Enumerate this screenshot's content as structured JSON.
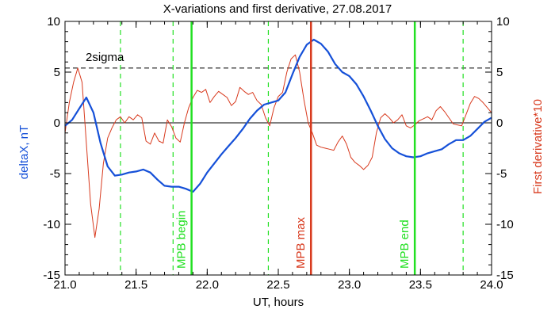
{
  "chart_data": {
    "type": "line",
    "title": "X-variations and first derivative, 27.08.2017",
    "xlabel": "UT, hours",
    "ylabel_left": "deltaX, nT",
    "ylabel_right": "First derivative*10",
    "xlim": [
      21.0,
      24.0
    ],
    "ylim": [
      -15,
      10
    ],
    "x_ticks": [
      21.0,
      21.5,
      22.0,
      22.5,
      23.0,
      23.5,
      24.0
    ],
    "x_tick_labels": [
      "21.0",
      "21.5",
      "22.0",
      "22.5",
      "23.0",
      "23.5",
      "24.0"
    ],
    "y_ticks": [
      -15,
      -10,
      -5,
      0,
      5,
      10
    ],
    "y_tick_labels": [
      "-15",
      "-10",
      "-5",
      "0",
      "5",
      "10"
    ],
    "colors": {
      "deltaX": "#1550d8",
      "derivative": "#d83a1e",
      "mpb_edges": "#22e022",
      "mpb_max": "#d83a1e",
      "zero_line": "#000000",
      "sigma_line": "#000000"
    },
    "sigma_line": {
      "label": "2sigma",
      "y": 5.4
    },
    "zero_line": {
      "y": 0
    },
    "dashed_markers": [
      21.39,
      21.76,
      22.43,
      23.8
    ],
    "vertical_markers": [
      {
        "x": 21.89,
        "label": "MPB begin",
        "color": "#22e022"
      },
      {
        "x": 22.73,
        "label": "MPB max",
        "color": "#d83a1e"
      },
      {
        "x": 23.46,
        "label": "MPB end",
        "color": "#22e022"
      }
    ],
    "series": [
      {
        "role": "deltaX",
        "color": "#1550d8",
        "x": [
          21.0,
          21.05,
          21.1,
          21.15,
          21.2,
          21.25,
          21.3,
          21.35,
          21.4,
          21.45,
          21.5,
          21.55,
          21.6,
          21.65,
          21.7,
          21.75,
          21.8,
          21.85,
          21.9,
          21.95,
          22.0,
          22.05,
          22.1,
          22.15,
          22.2,
          22.25,
          22.3,
          22.35,
          22.4,
          22.45,
          22.5,
          22.55,
          22.6,
          22.65,
          22.7,
          22.75,
          22.8,
          22.85,
          22.9,
          22.95,
          23.0,
          23.05,
          23.1,
          23.15,
          23.2,
          23.25,
          23.3,
          23.35,
          23.4,
          23.45,
          23.5,
          23.55,
          23.6,
          23.65,
          23.7,
          23.75,
          23.8,
          23.85,
          23.9,
          23.95,
          24.0
        ],
        "y": [
          -0.3,
          0.3,
          1.4,
          2.5,
          1.0,
          -2.0,
          -4.3,
          -5.2,
          -5.1,
          -4.9,
          -4.8,
          -4.6,
          -4.9,
          -5.6,
          -6.2,
          -6.3,
          -6.3,
          -6.5,
          -6.8,
          -6.0,
          -4.9,
          -4.0,
          -3.1,
          -2.3,
          -1.5,
          -0.6,
          0.4,
          1.2,
          1.8,
          2.0,
          2.2,
          3.0,
          4.8,
          6.5,
          7.7,
          8.2,
          7.8,
          7.0,
          5.8,
          5.0,
          4.6,
          3.8,
          2.6,
          1.2,
          -0.3,
          -1.6,
          -2.5,
          -3.0,
          -3.3,
          -3.4,
          -3.3,
          -3.0,
          -2.8,
          -2.6,
          -2.1,
          -1.7,
          -1.7,
          -1.3,
          -0.6,
          0.1,
          0.5
        ]
      },
      {
        "role": "derivative",
        "color": "#d83a1e",
        "x": [
          21.0,
          21.03,
          21.06,
          21.09,
          21.12,
          21.15,
          21.18,
          21.21,
          21.24,
          21.27,
          21.3,
          21.33,
          21.36,
          21.39,
          21.42,
          21.45,
          21.48,
          21.51,
          21.54,
          21.57,
          21.6,
          21.63,
          21.66,
          21.69,
          21.72,
          21.75,
          21.78,
          21.81,
          21.84,
          21.87,
          21.9,
          21.93,
          21.96,
          21.99,
          22.02,
          22.05,
          22.08,
          22.11,
          22.14,
          22.17,
          22.2,
          22.23,
          22.26,
          22.29,
          22.32,
          22.35,
          22.38,
          22.41,
          22.44,
          22.47,
          22.5,
          22.53,
          22.56,
          22.59,
          22.62,
          22.65,
          22.68,
          22.71,
          22.74,
          22.77,
          22.8,
          22.83,
          22.86,
          22.89,
          22.92,
          22.95,
          22.98,
          23.01,
          23.04,
          23.07,
          23.1,
          23.13,
          23.16,
          23.19,
          23.22,
          23.25,
          23.28,
          23.31,
          23.34,
          23.37,
          23.4,
          23.43,
          23.46,
          23.49,
          23.52,
          23.55,
          23.58,
          23.61,
          23.64,
          23.67,
          23.7,
          23.73,
          23.76,
          23.79,
          23.82,
          23.85,
          23.88,
          23.91,
          23.94,
          23.97,
          24.0
        ],
        "y": [
          -1.0,
          2.0,
          4.0,
          5.4,
          4.0,
          -2.0,
          -8.0,
          -11.3,
          -8.5,
          -4.0,
          -1.5,
          -0.5,
          0.3,
          0.6,
          0.0,
          0.6,
          0.3,
          0.8,
          0.5,
          -1.8,
          -2.1,
          -1.0,
          -1.8,
          -2.0,
          0.3,
          -0.4,
          -1.5,
          -1.9,
          0.0,
          1.5,
          2.5,
          3.2,
          3.0,
          3.3,
          2.0,
          2.6,
          3.1,
          2.8,
          2.5,
          1.7,
          2.1,
          3.5,
          3.1,
          2.8,
          3.0,
          2.2,
          1.8,
          0.5,
          -0.3,
          1.5,
          2.6,
          3.0,
          5.0,
          6.3,
          6.7,
          5.0,
          2.3,
          0.0,
          -1.0,
          -2.2,
          -2.4,
          -2.5,
          -2.6,
          -2.7,
          -1.9,
          -1.3,
          -2.1,
          -3.4,
          -3.9,
          -4.2,
          -4.6,
          -4.2,
          -3.4,
          -1.0,
          0.5,
          0.9,
          0.5,
          0.0,
          0.3,
          0.8,
          -0.3,
          -0.5,
          -0.2,
          0.2,
          0.4,
          0.6,
          0.3,
          1.2,
          1.6,
          1.1,
          0.5,
          -0.1,
          -0.2,
          -0.3,
          0.8,
          1.9,
          2.6,
          2.4,
          2.0,
          1.5,
          1.0
        ]
      }
    ]
  }
}
